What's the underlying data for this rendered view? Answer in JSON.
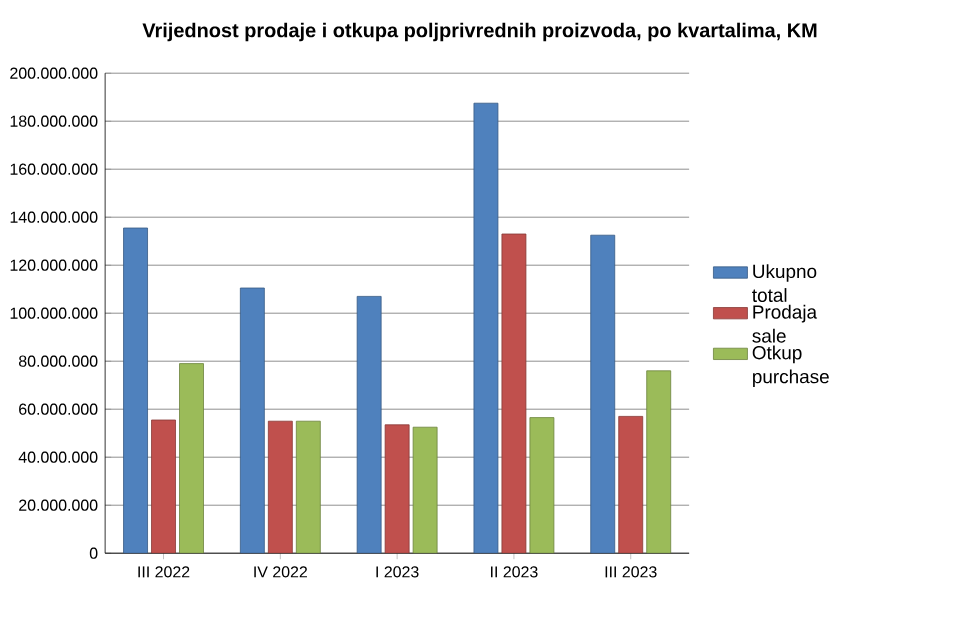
{
  "chart_data": {
    "type": "bar",
    "title": "Vrijednost prodaje i otkupa poljprivrednih proizvoda, po kvartalima, KM",
    "categories": [
      "III 2022",
      "IV 2022",
      "I 2023",
      "II 2023",
      "III 2023"
    ],
    "series": [
      {
        "name": "Ukupno total",
        "color": "#4f81bd",
        "values": [
          135500000,
          110500000,
          107000000,
          187500000,
          132500000
        ]
      },
      {
        "name": "Prodaja sale",
        "color": "#c0504d",
        "values": [
          55500000,
          55000000,
          53500000,
          133000000,
          57000000
        ]
      },
      {
        "name": "Otkup purchase",
        "color": "#9bbb59",
        "values": [
          79000000,
          55000000,
          52500000,
          56500000,
          76000000
        ]
      }
    ],
    "ylim": [
      0,
      200000000
    ],
    "yticks": [
      {
        "value": 0,
        "label": "0"
      },
      {
        "value": 20000000,
        "label": "20.000.000"
      },
      {
        "value": 40000000,
        "label": "40.000.000"
      },
      {
        "value": 60000000,
        "label": "60.000.000"
      },
      {
        "value": 80000000,
        "label": "80.000.000"
      },
      {
        "value": 100000000,
        "label": "100.000.000"
      },
      {
        "value": 120000000,
        "label": "120.000.000"
      },
      {
        "value": 140000000,
        "label": "140.000.000"
      },
      {
        "value": 160000000,
        "label": "160.000.000"
      },
      {
        "value": 180000000,
        "label": "180.000.000"
      },
      {
        "value": 200000000,
        "label": "200.000.000"
      }
    ],
    "grid": "y",
    "legend": "right"
  }
}
